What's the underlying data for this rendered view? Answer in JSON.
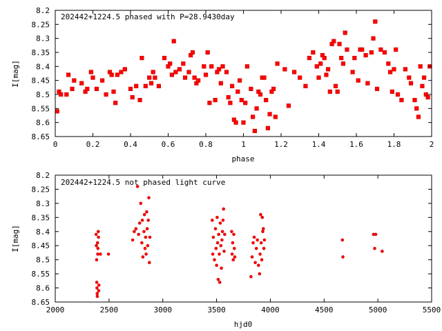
{
  "colors": {
    "points": "#ff0000",
    "axes": "#000000",
    "background": "#ffffff"
  },
  "chart_data": [
    {
      "type": "scatter",
      "title": "202442+1224.5 phased with P=28.9430day",
      "xlabel": "phase",
      "ylabel": "I[mag]",
      "xlim": [
        0,
        2
      ],
      "ylim": [
        8.65,
        8.2
      ],
      "y_inverted": true,
      "grid": false,
      "xticks": [
        "0",
        "0.2",
        "0.4",
        "0.6",
        "0.8",
        "1",
        "1.2",
        "1.4",
        "1.6",
        "1.8",
        "2"
      ],
      "yticks": [
        "8.2",
        "8.25",
        "8.3",
        "8.35",
        "8.4",
        "8.45",
        "8.5",
        "8.55",
        "8.6",
        "8.65"
      ],
      "points": [
        [
          0.01,
          8.56
        ],
        [
          0.02,
          8.49
        ],
        [
          0.03,
          8.5
        ],
        [
          0.06,
          8.5
        ],
        [
          0.07,
          8.43
        ],
        [
          0.09,
          8.48
        ],
        [
          0.1,
          8.45
        ],
        [
          0.14,
          8.46
        ],
        [
          0.16,
          8.49
        ],
        [
          0.17,
          8.48
        ],
        [
          0.19,
          8.42
        ],
        [
          0.2,
          8.44
        ],
        [
          0.22,
          8.48
        ],
        [
          0.25,
          8.45
        ],
        [
          0.27,
          8.5
        ],
        [
          0.29,
          8.42
        ],
        [
          0.3,
          8.43
        ],
        [
          0.31,
          8.49
        ],
        [
          0.32,
          8.53
        ],
        [
          0.33,
          8.43
        ],
        [
          0.35,
          8.42
        ],
        [
          0.37,
          8.41
        ],
        [
          0.4,
          8.48
        ],
        [
          0.41,
          8.51
        ],
        [
          0.43,
          8.47
        ],
        [
          0.45,
          8.52
        ],
        [
          0.46,
          8.37
        ],
        [
          0.48,
          8.47
        ],
        [
          0.5,
          8.44
        ],
        [
          0.51,
          8.46
        ],
        [
          0.52,
          8.42
        ],
        [
          0.53,
          8.44
        ],
        [
          0.55,
          8.47
        ],
        [
          0.58,
          8.37
        ],
        [
          0.6,
          8.4
        ],
        [
          0.61,
          8.39
        ],
        [
          0.62,
          8.43
        ],
        [
          0.63,
          8.31
        ],
        [
          0.64,
          8.42
        ],
        [
          0.66,
          8.41
        ],
        [
          0.68,
          8.39
        ],
        [
          0.69,
          8.44
        ],
        [
          0.71,
          8.42
        ],
        [
          0.72,
          8.36
        ],
        [
          0.73,
          8.35
        ],
        [
          0.74,
          8.44
        ],
        [
          0.75,
          8.46
        ],
        [
          0.76,
          8.45
        ],
        [
          0.79,
          8.4
        ],
        [
          0.8,
          8.43
        ],
        [
          0.81,
          8.35
        ],
        [
          0.82,
          8.53
        ],
        [
          0.83,
          8.4
        ],
        [
          0.85,
          8.52
        ],
        [
          0.86,
          8.42
        ],
        [
          0.87,
          8.41
        ],
        [
          0.88,
          8.46
        ],
        [
          0.89,
          8.4
        ],
        [
          0.91,
          8.42
        ],
        [
          0.92,
          8.51
        ],
        [
          0.93,
          8.53
        ],
        [
          0.94,
          8.47
        ],
        [
          0.95,
          8.59
        ],
        [
          0.96,
          8.6
        ],
        [
          0.97,
          8.49
        ],
        [
          0.98,
          8.45
        ],
        [
          0.99,
          8.52
        ],
        [
          1.0,
          8.6
        ],
        [
          1.01,
          8.53
        ],
        [
          1.02,
          8.4
        ],
        [
          1.04,
          8.48
        ],
        [
          1.05,
          8.58
        ],
        [
          1.06,
          8.63
        ],
        [
          1.07,
          8.55
        ],
        [
          1.08,
          8.49
        ],
        [
          1.09,
          8.5
        ],
        [
          1.1,
          8.44
        ],
        [
          1.11,
          8.44
        ],
        [
          1.12,
          8.52
        ],
        [
          1.13,
          8.62
        ],
        [
          1.14,
          8.57
        ],
        [
          1.15,
          8.49
        ],
        [
          1.16,
          8.48
        ],
        [
          1.17,
          8.58
        ],
        [
          1.18,
          8.39
        ],
        [
          1.22,
          8.41
        ],
        [
          1.24,
          8.54
        ],
        [
          1.27,
          8.42
        ],
        [
          1.3,
          8.44
        ],
        [
          1.33,
          8.47
        ],
        [
          1.35,
          8.37
        ],
        [
          1.37,
          8.35
        ],
        [
          1.39,
          8.4
        ],
        [
          1.4,
          8.44
        ],
        [
          1.41,
          8.39
        ],
        [
          1.42,
          8.36
        ],
        [
          1.43,
          8.37
        ],
        [
          1.44,
          8.43
        ],
        [
          1.45,
          8.41
        ],
        [
          1.46,
          8.49
        ],
        [
          1.47,
          8.32
        ],
        [
          1.48,
          8.31
        ],
        [
          1.49,
          8.47
        ],
        [
          1.5,
          8.49
        ],
        [
          1.51,
          8.32
        ],
        [
          1.52,
          8.37
        ],
        [
          1.53,
          8.39
        ],
        [
          1.54,
          8.28
        ],
        [
          1.55,
          8.34
        ],
        [
          1.58,
          8.42
        ],
        [
          1.59,
          8.37
        ],
        [
          1.61,
          8.45
        ],
        [
          1.62,
          8.34
        ],
        [
          1.63,
          8.34
        ],
        [
          1.65,
          8.36
        ],
        [
          1.66,
          8.46
        ],
        [
          1.68,
          8.35
        ],
        [
          1.69,
          8.3
        ],
        [
          1.7,
          8.24
        ],
        [
          1.71,
          8.48
        ],
        [
          1.73,
          8.34
        ],
        [
          1.75,
          8.35
        ],
        [
          1.77,
          8.39
        ],
        [
          1.78,
          8.42
        ],
        [
          1.79,
          8.49
        ],
        [
          1.8,
          8.41
        ],
        [
          1.81,
          8.34
        ],
        [
          1.82,
          8.5
        ],
        [
          1.84,
          8.52
        ],
        [
          1.86,
          8.41
        ],
        [
          1.88,
          8.44
        ],
        [
          1.89,
          8.46
        ],
        [
          1.91,
          8.52
        ],
        [
          1.92,
          8.55
        ],
        [
          1.93,
          8.58
        ],
        [
          1.94,
          8.4
        ],
        [
          1.95,
          8.47
        ],
        [
          1.96,
          8.44
        ],
        [
          1.97,
          8.5
        ],
        [
          1.98,
          8.51
        ],
        [
          1.99,
          8.4
        ]
      ]
    },
    {
      "type": "scatter",
      "title": "202442+1224.5 not phased light curve",
      "xlabel": "hjd0",
      "ylabel": "I[mag]",
      "xlim": [
        2000,
        5500
      ],
      "ylim": [
        8.65,
        8.2
      ],
      "y_inverted": true,
      "grid": false,
      "xticks": [
        "2000",
        "2500",
        "3000",
        "3500",
        "4000",
        "4500",
        "5000",
        "5500"
      ],
      "yticks": [
        "8.2",
        "8.25",
        "8.3",
        "8.35",
        "8.4",
        "8.45",
        "8.5",
        "8.55",
        "8.6",
        "8.65"
      ],
      "points": [
        [
          2380,
          8.41
        ],
        [
          2382,
          8.45
        ],
        [
          2385,
          8.5
        ],
        [
          2386,
          8.58
        ],
        [
          2388,
          8.6
        ],
        [
          2390,
          8.62
        ],
        [
          2391,
          8.63
        ],
        [
          2393,
          8.44
        ],
        [
          2395,
          8.48
        ],
        [
          2397,
          8.46
        ],
        [
          2400,
          8.4
        ],
        [
          2402,
          8.42
        ],
        [
          2404,
          8.61
        ],
        [
          2406,
          8.59
        ],
        [
          2420,
          8.48
        ],
        [
          2495,
          8.48
        ],
        [
          2720,
          8.43
        ],
        [
          2735,
          8.4
        ],
        [
          2750,
          8.39
        ],
        [
          2765,
          8.24
        ],
        [
          2775,
          8.41
        ],
        [
          2785,
          8.37
        ],
        [
          2795,
          8.3
        ],
        [
          2805,
          8.44
        ],
        [
          2810,
          8.36
        ],
        [
          2815,
          8.49
        ],
        [
          2825,
          8.4
        ],
        [
          2830,
          8.34
        ],
        [
          2835,
          8.46
        ],
        [
          2840,
          8.42
        ],
        [
          2845,
          8.48
        ],
        [
          2850,
          8.33
        ],
        [
          2855,
          8.39
        ],
        [
          2860,
          8.45
        ],
        [
          2865,
          8.36
        ],
        [
          2870,
          8.28
        ],
        [
          2875,
          8.51
        ],
        [
          2880,
          8.42
        ],
        [
          3460,
          8.36
        ],
        [
          3465,
          8.48
        ],
        [
          3470,
          8.42
        ],
        [
          3480,
          8.5
        ],
        [
          3490,
          8.39
        ],
        [
          3495,
          8.46
        ],
        [
          3500,
          8.52
        ],
        [
          3505,
          8.35
        ],
        [
          3510,
          8.44
        ],
        [
          3515,
          8.57
        ],
        [
          3520,
          8.41
        ],
        [
          3525,
          8.48
        ],
        [
          3530,
          8.58
        ],
        [
          3535,
          8.37
        ],
        [
          3540,
          8.45
        ],
        [
          3545,
          8.53
        ],
        [
          3550,
          8.43
        ],
        [
          3555,
          8.4
        ],
        [
          3560,
          8.36
        ],
        [
          3565,
          8.32
        ],
        [
          3570,
          8.47
        ],
        [
          3575,
          8.41
        ],
        [
          3640,
          8.4
        ],
        [
          3645,
          8.48
        ],
        [
          3650,
          8.44
        ],
        [
          3655,
          8.5
        ],
        [
          3660,
          8.41
        ],
        [
          3665,
          8.46
        ],
        [
          3670,
          8.49
        ],
        [
          3820,
          8.56
        ],
        [
          3830,
          8.49
        ],
        [
          3840,
          8.44
        ],
        [
          3850,
          8.42
        ],
        [
          3860,
          8.51
        ],
        [
          3870,
          8.46
        ],
        [
          3880,
          8.43
        ],
        [
          3890,
          8.52
        ],
        [
          3900,
          8.55
        ],
        [
          3905,
          8.48
        ],
        [
          3910,
          8.34
        ],
        [
          3915,
          8.44
        ],
        [
          3920,
          8.5
        ],
        [
          3925,
          8.35
        ],
        [
          3930,
          8.4
        ],
        [
          3935,
          8.39
        ],
        [
          3940,
          8.46
        ],
        [
          3945,
          8.43
        ],
        [
          4670,
          8.43
        ],
        [
          4675,
          8.49
        ],
        [
          4960,
          8.41
        ],
        [
          4970,
          8.46
        ],
        [
          4980,
          8.41
        ],
        [
          5040,
          8.47
        ]
      ]
    }
  ]
}
